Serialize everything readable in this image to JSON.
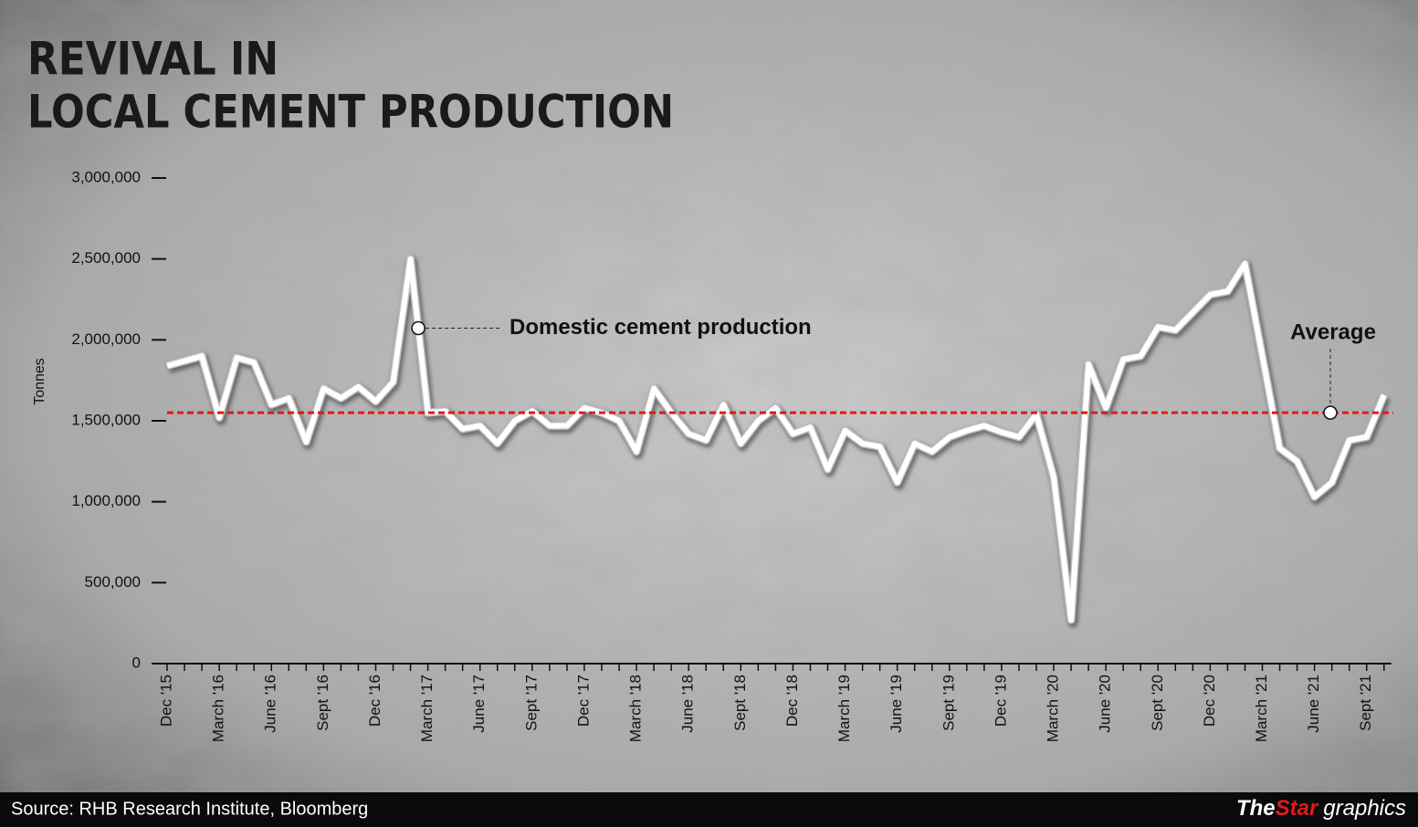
{
  "chart_data": {
    "type": "line",
    "title": [
      "REVIVAL IN",
      "LOCAL CEMENT PRODUCTION"
    ],
    "y_label": "Tonnes",
    "categories": [
      "Dec '15",
      null,
      null,
      "March '16",
      null,
      null,
      "June '16",
      null,
      null,
      "Sept '16",
      null,
      null,
      "Dec '16",
      null,
      null,
      "March '17",
      null,
      null,
      "June '17",
      null,
      null,
      "Sept '17",
      null,
      null,
      "Dec '17",
      null,
      null,
      "March '18",
      null,
      null,
      "June '18",
      null,
      null,
      "Sept '18",
      null,
      null,
      "Dec '18",
      null,
      null,
      "March '19",
      null,
      null,
      "June '19",
      null,
      null,
      "Sept '19",
      null,
      null,
      "Dec '19",
      null,
      null,
      "March '20",
      null,
      null,
      "June '20",
      null,
      null,
      "Sept '20",
      null,
      null,
      "Dec '20",
      null,
      null,
      "March '21",
      null,
      null,
      "June '21",
      null,
      null,
      "Sept '21",
      null
    ],
    "series": [
      {
        "name": "Domestic cement production",
        "color": "#ffffff",
        "values": [
          1840000,
          1870000,
          1900000,
          1520000,
          1890000,
          1860000,
          1600000,
          1640000,
          1370000,
          1700000,
          1640000,
          1710000,
          1620000,
          1740000,
          2500000,
          1550000,
          1560000,
          1450000,
          1470000,
          1360000,
          1500000,
          1560000,
          1470000,
          1470000,
          1580000,
          1550000,
          1500000,
          1310000,
          1700000,
          1550000,
          1420000,
          1380000,
          1600000,
          1360000,
          1500000,
          1580000,
          1420000,
          1460000,
          1200000,
          1440000,
          1360000,
          1340000,
          1120000,
          1360000,
          1310000,
          1400000,
          1440000,
          1470000,
          1430000,
          1400000,
          1540000,
          1150000,
          270000,
          1850000,
          1580000,
          1880000,
          1900000,
          2080000,
          2060000,
          2170000,
          2280000,
          2300000,
          2470000,
          1900000,
          1330000,
          1250000,
          1030000,
          1120000,
          1380000,
          1400000,
          1660000
        ]
      }
    ],
    "average": {
      "name": "Average",
      "value": 1550000,
      "color": "#e0191b"
    },
    "ylim": [
      0,
      3000000
    ],
    "yticks": [
      0,
      {
        "value": 500000,
        "label": "500,000"
      },
      {
        "value": 1000000,
        "label": "1,000,000"
      },
      {
        "value": 1500000,
        "label": "1,500,000"
      },
      {
        "value": 2000000,
        "label": "2,000,000"
      },
      {
        "value": 2500000,
        "label": "2,500,000"
      },
      {
        "value": 3000000,
        "label": "3,000,000"
      }
    ],
    "source": "Source: RHB Research Institute, Bloomberg",
    "brand": [
      "The",
      "Star",
      "graphics"
    ]
  }
}
